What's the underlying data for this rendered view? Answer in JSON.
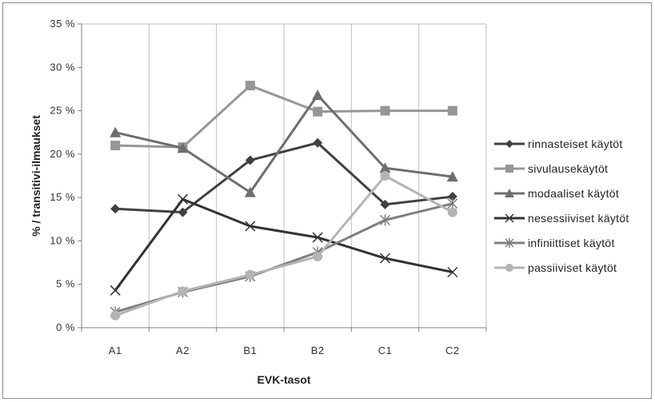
{
  "chart_data": {
    "type": "line",
    "title": "",
    "xlabel": "EVK-tasot",
    "ylabel": "% / transitivi-ilmaukset",
    "categories": [
      "A1",
      "A2",
      "B1",
      "B2",
      "C1",
      "C2"
    ],
    "ylim": [
      0,
      35
    ],
    "yticks": [
      "0 %",
      "5 %",
      "10 %",
      "15 %",
      "20 %",
      "25 %",
      "30 %",
      "35 %"
    ],
    "ytick_values": [
      0,
      5,
      10,
      15,
      20,
      25,
      30,
      35
    ],
    "grid": "vertical",
    "legend_position": "right",
    "series": [
      {
        "name": "rinnasteiset käytöt",
        "marker": "diamond",
        "color": "#404040",
        "values": [
          13.7,
          13.3,
          19.3,
          21.3,
          14.2,
          15.1
        ]
      },
      {
        "name": "sivulausekäytöt",
        "marker": "square",
        "color": "#969696",
        "values": [
          21.0,
          20.8,
          27.9,
          24.9,
          25.0,
          25.0
        ]
      },
      {
        "name": "modaaliset käytöt",
        "marker": "triangle",
        "color": "#6e6e6e",
        "values": [
          22.5,
          20.7,
          15.6,
          26.8,
          18.4,
          17.4
        ]
      },
      {
        "name": "nesessiiviset käytöt",
        "marker": "x",
        "color": "#333333",
        "values": [
          4.3,
          14.8,
          11.7,
          10.4,
          8.0,
          6.4
        ]
      },
      {
        "name": "infiniittiset käytöt",
        "marker": "star",
        "color": "#7f7f7f",
        "values": [
          1.8,
          4.1,
          5.9,
          8.7,
          12.4,
          14.3
        ]
      },
      {
        "name": "passiiviset käytöt",
        "marker": "circle",
        "color": "#b4b4b4",
        "values": [
          1.4,
          4.2,
          6.1,
          8.2,
          17.5,
          13.3
        ]
      }
    ]
  }
}
